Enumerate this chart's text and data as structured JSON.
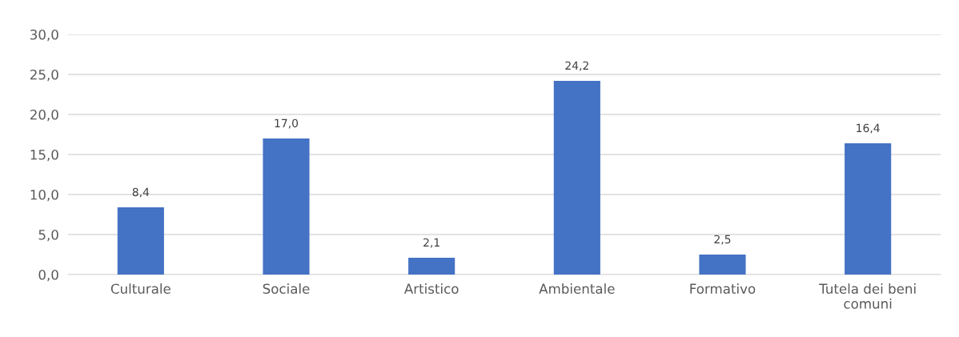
{
  "chart_data": {
    "type": "bar",
    "categories": [
      "Culturale",
      "Sociale",
      "Artistico",
      "Ambientale",
      "Formativo",
      "Tutela dei beni comuni"
    ],
    "values": [
      8.4,
      17.0,
      2.1,
      24.2,
      2.5,
      16.4
    ],
    "value_labels": [
      "8,4",
      "17,0",
      "2,1",
      "24,2",
      "2,5",
      "16,4"
    ],
    "color": "#4472c4",
    "ylim": [
      0,
      30
    ],
    "yticks": [
      {
        "value": 0,
        "label": "0,0"
      },
      {
        "value": 5,
        "label": "5,0"
      },
      {
        "value": 10,
        "label": "10,0"
      },
      {
        "value": 15,
        "label": "15,0"
      },
      {
        "value": 20,
        "label": "20,0"
      },
      {
        "value": 25,
        "label": "25,0"
      },
      {
        "value": 30,
        "label": "30,0"
      }
    ],
    "grid": "y"
  }
}
